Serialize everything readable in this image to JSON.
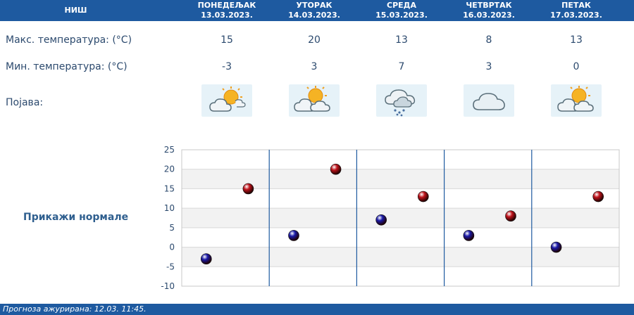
{
  "header": {
    "city": "НИШ",
    "days": [
      {
        "name": "ПОНЕДЕЉАК",
        "date": "13.03.2023."
      },
      {
        "name": "УТОРАК",
        "date": "14.03.2023."
      },
      {
        "name": "СРЕДА",
        "date": "15.03.2023."
      },
      {
        "name": "ЧЕТВРТАК",
        "date": "16.03.2023."
      },
      {
        "name": "ПЕТАК",
        "date": "17.03.2023."
      }
    ]
  },
  "rows": {
    "max_label": "Макс. температура: (°C)",
    "min_label": "Мин. температура: (°C)",
    "phenomenon_label": "Појава:",
    "max_values": [
      "15",
      "20",
      "13",
      "8",
      "13"
    ],
    "min_values": [
      "-3",
      "3",
      "7",
      "3",
      "0"
    ],
    "icons": [
      "partly-cloudy-sun-icon",
      "partly-cloudy-sun-icon",
      "cloud-rain-icon",
      "cloud-icon",
      "partly-cloudy-sun-icon"
    ]
  },
  "normals_label": "Прикажи нормале",
  "chart_data": {
    "type": "scatter",
    "categories": [
      "13.03.2023.",
      "14.03.2023.",
      "15.03.2023.",
      "16.03.2023.",
      "17.03.2023."
    ],
    "series": [
      {
        "values": [
          -3,
          3,
          7,
          3,
          0
        ],
        "color": "#1a1aa8"
      },
      {
        "values": [
          15,
          20,
          13,
          8,
          13
        ],
        "color": "#c0141c"
      }
    ],
    "ylim": [
      -10,
      25
    ],
    "yticks": [
      "25",
      "20",
      "15",
      "10",
      "5",
      "0",
      "-5",
      "-10"
    ],
    "grid": true
  },
  "footer": {
    "updated": "Прогноза ажурирана:  12.03. 11:45."
  },
  "colors": {
    "header_bg": "#1e5aa0",
    "text": "#2c4a6e",
    "max_marker": "#c0141c",
    "min_marker": "#1a1aa8"
  }
}
